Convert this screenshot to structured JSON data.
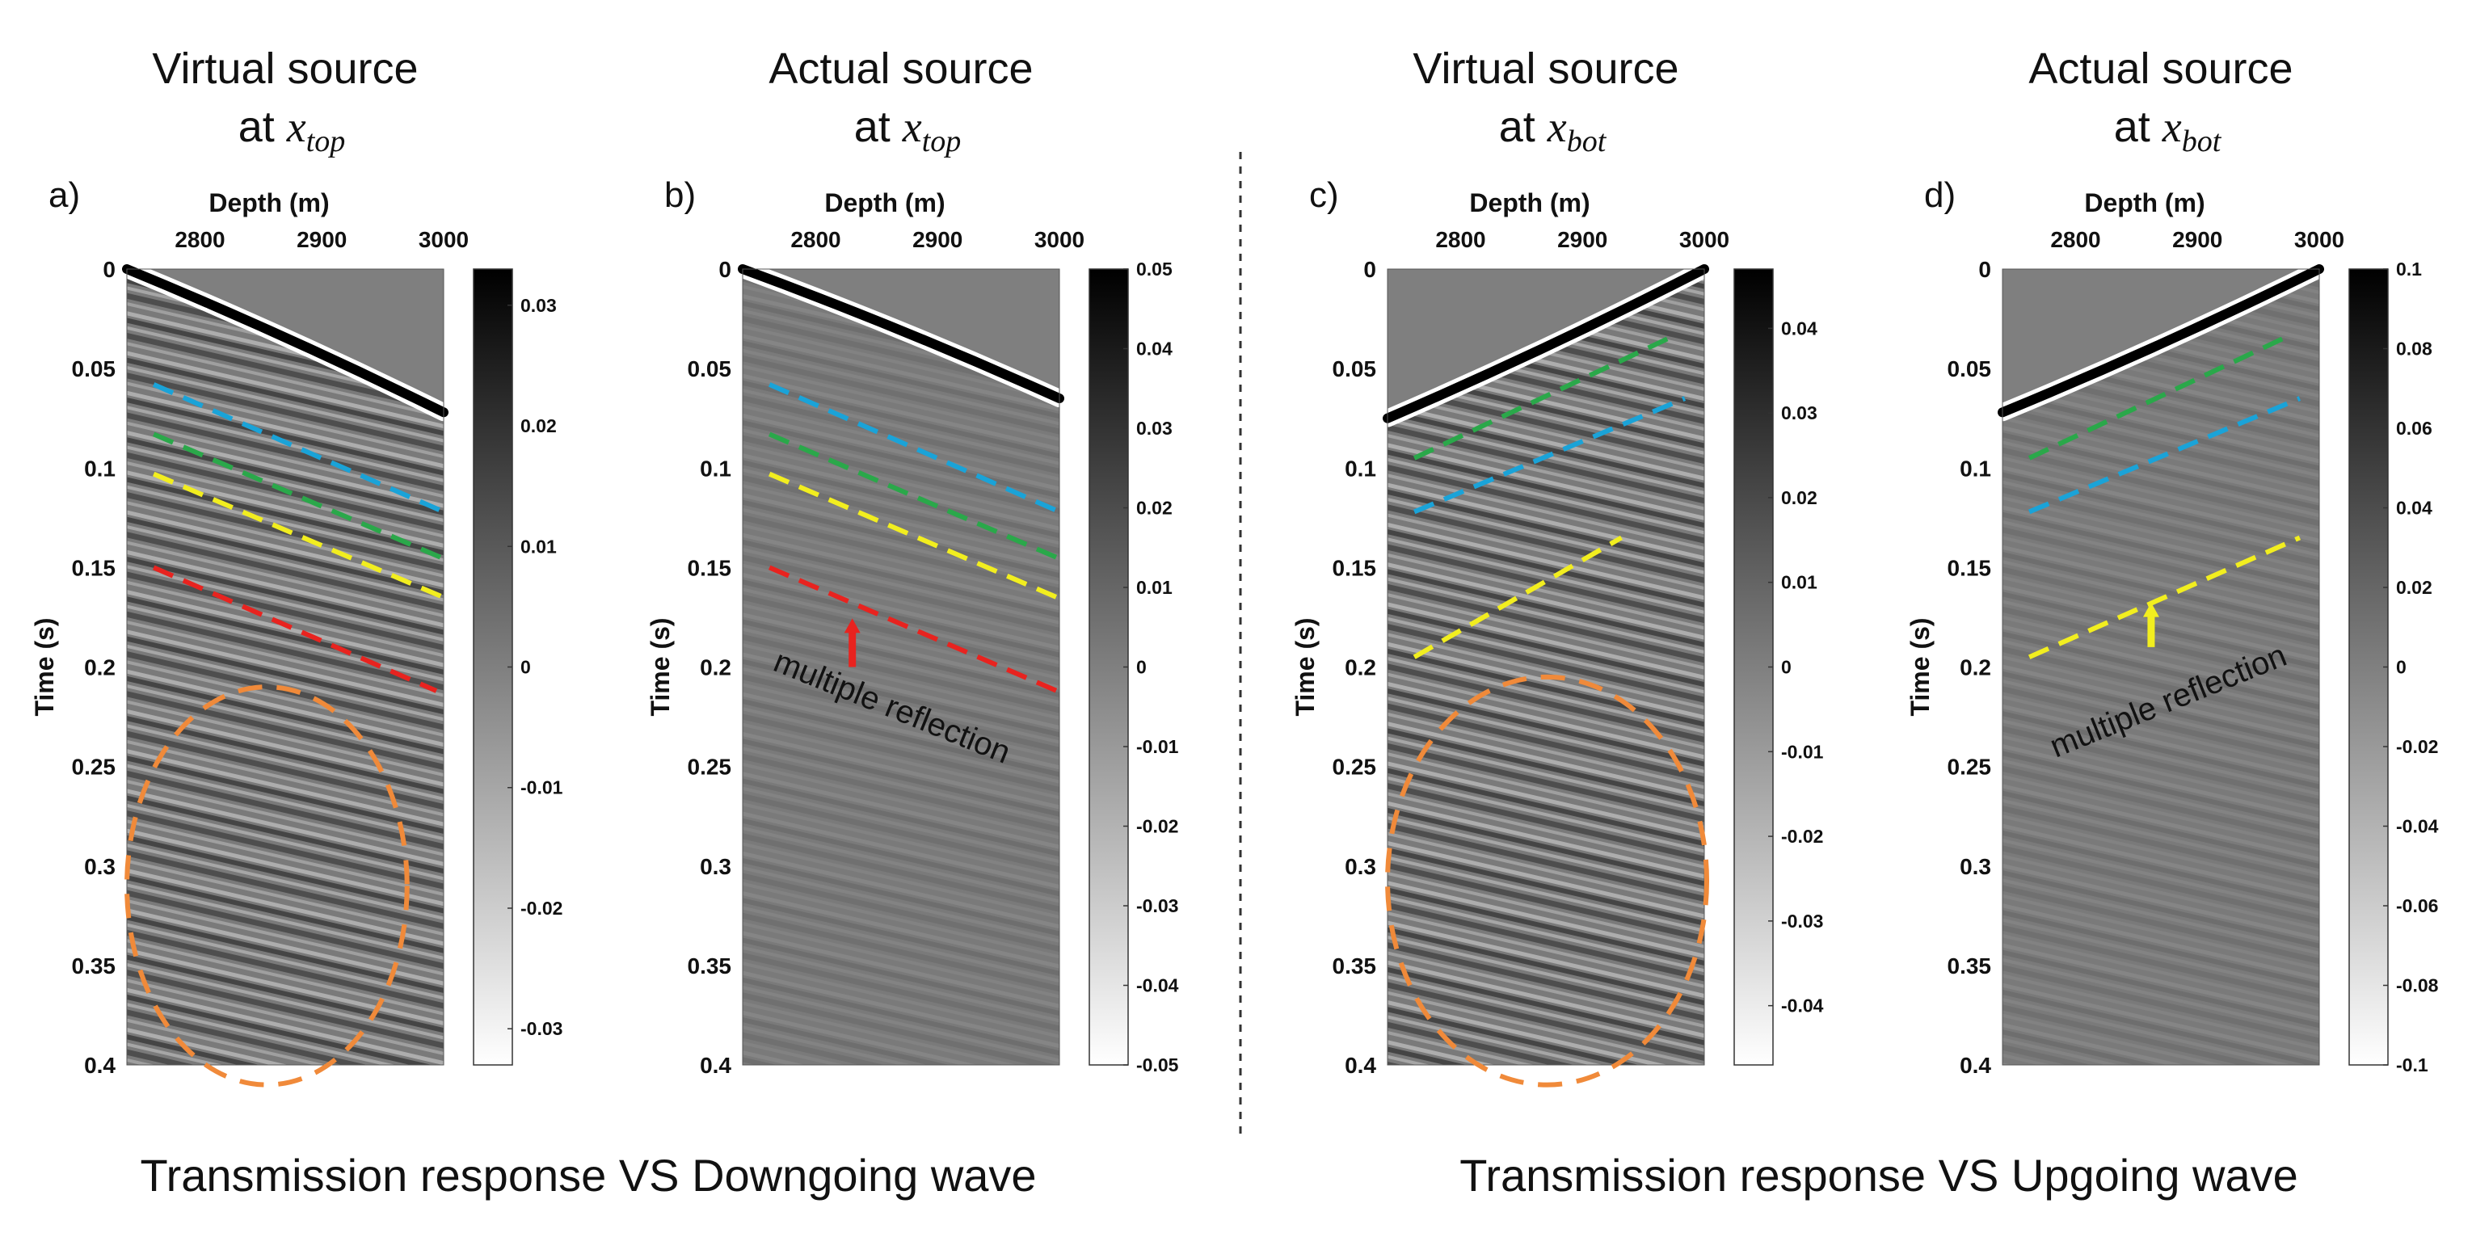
{
  "figure": {
    "captions": [
      "Transmission response VS Downgoing wave",
      "Transmission response VS Upgoing wave"
    ]
  },
  "chart_data": [
    {
      "type": "heatmap",
      "panel_label": "a)",
      "title_line1": "Virtual source",
      "title_prefix": "at ",
      "title_var": "x",
      "title_sub": "top",
      "xlabel": "Depth (m)",
      "ylabel": "Time (s)",
      "x_ticks": [
        "2800",
        "2900",
        "3000"
      ],
      "y_ticks": [
        "0",
        "0.05",
        "0.1",
        "0.15",
        "0.2",
        "0.25",
        "0.3",
        "0.35",
        "0.4"
      ],
      "xlim": [
        2740,
        3000
      ],
      "ylim": [
        0,
        0.4
      ],
      "colorbar_ticks": [
        "0.03",
        "0.02",
        "0.01",
        "0",
        "-0.01",
        "-0.02",
        "-0.03"
      ],
      "colorbar_values": [
        0.03,
        0.02,
        0.01,
        0,
        -0.01,
        -0.02,
        -0.03
      ],
      "colorbar_range": [
        -0.033,
        0.033
      ],
      "first_arrival": {
        "x": [
          2740,
          3000
        ],
        "t": [
          0.0,
          0.072
        ]
      },
      "noise": "strong",
      "events": [
        {
          "color": "#1aa3d8",
          "x": [
            2762,
            3000
          ],
          "t": [
            0.058,
            0.122
          ]
        },
        {
          "color": "#2aa84a",
          "x": [
            2762,
            2998
          ],
          "t": [
            0.083,
            0.145
          ]
        },
        {
          "color": "#f2ee1f",
          "x": [
            2762,
            3000
          ],
          "t": [
            0.103,
            0.165
          ]
        },
        {
          "color": "#e8231f",
          "x": [
            2762,
            2994
          ],
          "t": [
            0.15,
            0.212
          ]
        }
      ],
      "ellipse": {
        "x": [
          2740,
          2970
        ],
        "t": [
          0.21,
          0.41
        ],
        "color": "#f08a3a"
      }
    },
    {
      "type": "heatmap",
      "panel_label": "b)",
      "title_line1": "Actual source",
      "title_prefix": "at ",
      "title_var": "x",
      "title_sub": "top",
      "xlabel": "Depth (m)",
      "ylabel": "Time (s)",
      "x_ticks": [
        "2800",
        "2900",
        "3000"
      ],
      "y_ticks": [
        "0",
        "0.05",
        "0.1",
        "0.15",
        "0.2",
        "0.25",
        "0.3",
        "0.35",
        "0.4"
      ],
      "xlim": [
        2740,
        3000
      ],
      "ylim": [
        0,
        0.4
      ],
      "colorbar_ticks": [
        "0.05",
        "0.04",
        "0.03",
        "0.02",
        "0.01",
        "0",
        "-0.01",
        "-0.02",
        "-0.03",
        "-0.04",
        "-0.05"
      ],
      "colorbar_values": [
        0.05,
        0.04,
        0.03,
        0.02,
        0.01,
        0,
        -0.01,
        -0.02,
        -0.03,
        -0.04,
        -0.05
      ],
      "colorbar_range": [
        -0.05,
        0.05
      ],
      "first_arrival": {
        "x": [
          2740,
          3000
        ],
        "t": [
          0.0,
          0.065
        ]
      },
      "noise": "faint",
      "events": [
        {
          "color": "#1aa3d8",
          "x": [
            2762,
            3000
          ],
          "t": [
            0.058,
            0.122
          ]
        },
        {
          "color": "#2aa84a",
          "x": [
            2762,
            2998
          ],
          "t": [
            0.083,
            0.145
          ]
        },
        {
          "color": "#f2ee1f",
          "x": [
            2762,
            2998
          ],
          "t": [
            0.103,
            0.165
          ]
        },
        {
          "color": "#e8231f",
          "x": [
            2762,
            2998
          ],
          "t": [
            0.15,
            0.212
          ]
        }
      ],
      "annotation": {
        "text": "multiple  reflection",
        "arrow_color": "#e8231f",
        "arrow_x": 2830,
        "arrow_t": [
          0.2,
          0.178
        ]
      }
    },
    {
      "type": "heatmap",
      "panel_label": "c)",
      "title_line1": "Virtual source",
      "title_prefix": "at ",
      "title_var": "x",
      "title_sub": "bot",
      "xlabel": "Depth (m)",
      "ylabel": "Time (s)",
      "x_ticks": [
        "2800",
        "2900",
        "3000"
      ],
      "y_ticks": [
        "0",
        "0.05",
        "0.1",
        "0.15",
        "0.2",
        "0.25",
        "0.3",
        "0.35",
        "0.4"
      ],
      "xlim": [
        2740,
        3000
      ],
      "ylim": [
        0,
        0.4
      ],
      "colorbar_ticks": [
        "0.04",
        "0.03",
        "0.02",
        "0.01",
        "0",
        "-0.01",
        "-0.02",
        "-0.03",
        "-0.04"
      ],
      "colorbar_values": [
        0.04,
        0.03,
        0.02,
        0.01,
        0,
        -0.01,
        -0.02,
        -0.03,
        -0.04
      ],
      "colorbar_range": [
        -0.047,
        0.047
      ],
      "first_arrival": {
        "x": [
          2740,
          3000
        ],
        "t": [
          0.075,
          0.0
        ]
      },
      "noise": "strong",
      "events": [
        {
          "color": "#2aa84a",
          "x": [
            2762,
            2970
          ],
          "t": [
            0.095,
            0.035
          ]
        },
        {
          "color": "#1aa3d8",
          "x": [
            2762,
            2984
          ],
          "t": [
            0.122,
            0.065
          ]
        },
        {
          "color": "#f2ee1f",
          "x": [
            2762,
            2932
          ],
          "t": [
            0.195,
            0.135
          ]
        }
      ],
      "ellipse": {
        "x": [
          2740,
          3002
        ],
        "t": [
          0.205,
          0.41
        ],
        "color": "#f08a3a"
      }
    },
    {
      "type": "heatmap",
      "panel_label": "d)",
      "title_line1": "Actual source",
      "title_prefix": "at ",
      "title_var": "x",
      "title_sub": "bot",
      "xlabel": "Depth (m)",
      "ylabel": "Time (s)",
      "x_ticks": [
        "2800",
        "2900",
        "3000"
      ],
      "y_ticks": [
        "0",
        "0.05",
        "0.1",
        "0.15",
        "0.2",
        "0.25",
        "0.3",
        "0.35",
        "0.4"
      ],
      "xlim": [
        2740,
        3000
      ],
      "ylim": [
        0,
        0.4
      ],
      "colorbar_ticks": [
        "0.1",
        "0.08",
        "0.06",
        "0.04",
        "0.02",
        "0",
        "-0.02",
        "-0.04",
        "-0.06",
        "-0.08",
        "-0.1"
      ],
      "colorbar_values": [
        0.1,
        0.08,
        0.06,
        0.04,
        0.02,
        0,
        -0.02,
        -0.04,
        -0.06,
        -0.08,
        -0.1
      ],
      "colorbar_range": [
        -0.1,
        0.1
      ],
      "first_arrival": {
        "x": [
          2740,
          3000
        ],
        "t": [
          0.072,
          0.0
        ]
      },
      "noise": "faint",
      "events": [
        {
          "color": "#2aa84a",
          "x": [
            2762,
            2970
          ],
          "t": [
            0.095,
            0.035
          ]
        },
        {
          "color": "#1aa3d8",
          "x": [
            2762,
            2984
          ],
          "t": [
            0.122,
            0.065
          ]
        },
        {
          "color": "#f2ee1f",
          "x": [
            2762,
            2984
          ],
          "t": [
            0.195,
            0.135
          ]
        }
      ],
      "annotation": {
        "text": "multiple  reflection",
        "arrow_color": "#f2ee1f",
        "arrow_x": 2862,
        "arrow_t": [
          0.19,
          0.17
        ]
      }
    }
  ]
}
